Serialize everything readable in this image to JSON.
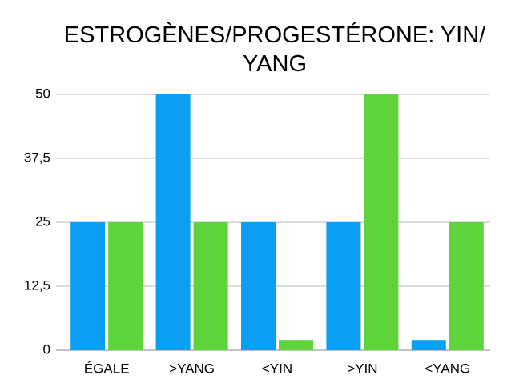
{
  "chart_data": {
    "type": "bar",
    "title": "ESTROGÈNES/PROGESTÉRONE: YIN/ YANG",
    "categories": [
      "ÉGALE",
      ">YANG",
      "<YIN",
      ">YIN",
      "<YANG"
    ],
    "series": [
      {
        "color": "#0a9ff5",
        "values": [
          25,
          50,
          25,
          25,
          2
        ]
      },
      {
        "color": "#5fd43a",
        "values": [
          25,
          25,
          2,
          50,
          25
        ]
      }
    ],
    "ylim": [
      0,
      50
    ],
    "yticks": [
      0,
      {
        "value": 12.5,
        "label": "12,5"
      },
      25,
      {
        "value": 37.5,
        "label": "37,5"
      },
      50
    ],
    "grid": true
  }
}
